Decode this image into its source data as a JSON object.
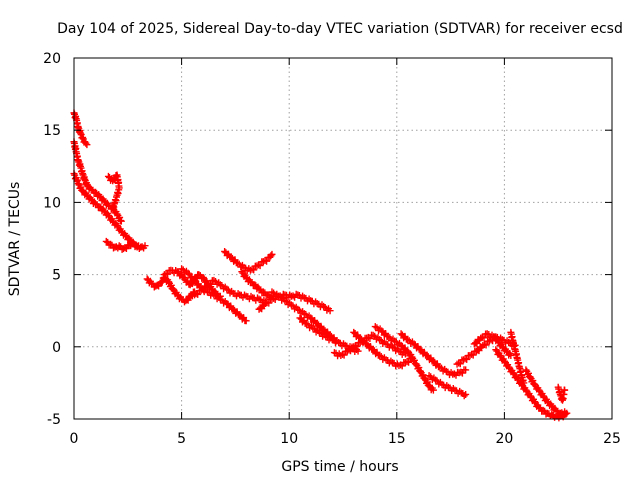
{
  "chart_data": {
    "type": "scatter",
    "title": "Day 104 of 2025, Sidereal Day-to-day VTEC variation (SDTVAR) for receiver ecsd",
    "xlabel": "GPS time / hours",
    "ylabel": "SDTVAR / TECUs",
    "xlim": [
      0,
      25
    ],
    "ylim": [
      -5,
      20
    ],
    "xticks": [
      "0",
      "5",
      "10",
      "15",
      "20",
      "25"
    ],
    "yticks": [
      "-5",
      "0",
      "5",
      "10",
      "15",
      "20"
    ],
    "grid": true,
    "marker": "+",
    "series": [
      {
        "name": "SDTVAR",
        "color": "#ff0000",
        "segments": [
          [
            [
              0.0,
              16.2
            ],
            [
              0.1,
              15.8
            ],
            [
              0.2,
              15.2
            ],
            [
              0.3,
              14.8
            ],
            [
              0.4,
              14.5
            ],
            [
              0.5,
              14.2
            ],
            [
              0.6,
              14.0
            ]
          ],
          [
            [
              0.0,
              14.2
            ],
            [
              0.1,
              13.5
            ],
            [
              0.2,
              12.9
            ],
            [
              0.3,
              12.5
            ],
            [
              0.4,
              12.0
            ],
            [
              0.5,
              11.6
            ],
            [
              0.6,
              11.2
            ],
            [
              0.8,
              10.9
            ],
            [
              1.0,
              10.7
            ],
            [
              1.2,
              10.4
            ],
            [
              1.4,
              10.1
            ],
            [
              1.6,
              9.8
            ],
            [
              1.8,
              9.6
            ],
            [
              2.0,
              9.2
            ],
            [
              2.2,
              8.7
            ]
          ],
          [
            [
              0.0,
              12.0
            ],
            [
              0.2,
              11.3
            ],
            [
              0.4,
              10.8
            ],
            [
              0.6,
              10.5
            ],
            [
              0.8,
              10.2
            ],
            [
              1.0,
              9.9
            ],
            [
              1.2,
              9.7
            ],
            [
              1.4,
              9.4
            ],
            [
              1.6,
              9.1
            ],
            [
              1.8,
              8.7
            ],
            [
              2.0,
              8.4
            ],
            [
              2.2,
              8.0
            ],
            [
              2.4,
              7.7
            ],
            [
              2.6,
              7.4
            ],
            [
              2.8,
              7.1
            ],
            [
              3.0,
              7.0
            ]
          ],
          [
            [
              1.5,
              7.3
            ],
            [
              1.7,
              7.1
            ],
            [
              1.9,
              6.9
            ],
            [
              2.1,
              7.0
            ],
            [
              2.3,
              6.8
            ],
            [
              2.5,
              7.0
            ],
            [
              2.7,
              7.2
            ],
            [
              2.9,
              7.0
            ],
            [
              3.1,
              6.9
            ],
            [
              3.3,
              7.0
            ]
          ],
          [
            [
              1.6,
              11.8
            ],
            [
              1.8,
              11.5
            ],
            [
              2.0,
              11.9
            ],
            [
              2.1,
              11.0
            ],
            [
              2.0,
              10.5
            ],
            [
              1.9,
              10.0
            ],
            [
              1.8,
              9.6
            ]
          ],
          [
            [
              3.4,
              4.7
            ],
            [
              3.6,
              4.4
            ],
            [
              3.8,
              4.2
            ],
            [
              4.0,
              4.4
            ],
            [
              4.2,
              4.8
            ],
            [
              4.4,
              4.5
            ],
            [
              4.6,
              4.0
            ],
            [
              4.8,
              3.6
            ],
            [
              5.0,
              3.3
            ],
            [
              5.2,
              3.2
            ],
            [
              5.4,
              3.5
            ],
            [
              5.6,
              3.8
            ]
          ],
          [
            [
              4.2,
              5.0
            ],
            [
              4.5,
              5.3
            ],
            [
              4.8,
              5.2
            ],
            [
              5.1,
              4.8
            ],
            [
              5.4,
              4.3
            ],
            [
              5.6,
              4.7
            ],
            [
              5.8,
              5.0
            ],
            [
              6.0,
              4.8
            ],
            [
              6.2,
              4.4
            ],
            [
              6.4,
              4.0
            ],
            [
              6.6,
              3.7
            ],
            [
              6.8,
              3.5
            ]
          ],
          [
            [
              5.0,
              5.4
            ],
            [
              5.3,
              5.1
            ],
            [
              5.6,
              4.6
            ],
            [
              5.9,
              4.1
            ],
            [
              6.2,
              3.8
            ],
            [
              6.5,
              3.6
            ],
            [
              6.8,
              3.3
            ],
            [
              7.1,
              3.0
            ],
            [
              7.4,
              2.6
            ],
            [
              7.7,
              2.2
            ],
            [
              8.0,
              1.8
            ]
          ],
          [
            [
              5.6,
              3.6
            ],
            [
              5.9,
              3.9
            ],
            [
              6.2,
              4.3
            ],
            [
              6.5,
              4.6
            ],
            [
              6.8,
              4.3
            ],
            [
              7.1,
              4.0
            ],
            [
              7.4,
              3.7
            ],
            [
              7.7,
              3.6
            ],
            [
              8.0,
              3.5
            ],
            [
              8.3,
              3.4
            ],
            [
              8.6,
              3.3
            ],
            [
              8.9,
              3.1
            ]
          ],
          [
            [
              7.0,
              6.6
            ],
            [
              7.3,
              6.2
            ],
            [
              7.6,
              5.8
            ],
            [
              7.9,
              5.5
            ],
            [
              8.2,
              5.3
            ],
            [
              8.5,
              5.6
            ],
            [
              8.8,
              5.9
            ],
            [
              9.1,
              6.2
            ],
            [
              9.2,
              6.4
            ]
          ],
          [
            [
              7.8,
              5.2
            ],
            [
              8.0,
              4.8
            ],
            [
              8.2,
              4.5
            ],
            [
              8.4,
              4.3
            ],
            [
              8.6,
              4.0
            ],
            [
              8.8,
              3.8
            ],
            [
              9.0,
              3.6
            ],
            [
              9.2,
              3.5
            ]
          ],
          [
            [
              8.6,
              2.6
            ],
            [
              8.9,
              3.0
            ],
            [
              9.2,
              3.3
            ],
            [
              9.5,
              3.5
            ],
            [
              9.8,
              3.6
            ],
            [
              10.1,
              3.5
            ],
            [
              10.4,
              3.6
            ],
            [
              10.7,
              3.4
            ],
            [
              11.0,
              3.2
            ],
            [
              11.3,
              3.0
            ],
            [
              11.6,
              2.8
            ],
            [
              11.9,
              2.5
            ]
          ],
          [
            [
              9.2,
              3.8
            ],
            [
              9.5,
              3.5
            ],
            [
              9.8,
              3.2
            ],
            [
              10.1,
              2.9
            ],
            [
              10.4,
              2.6
            ],
            [
              10.7,
              2.3
            ],
            [
              11.0,
              2.0
            ],
            [
              11.3,
              1.6
            ],
            [
              11.6,
              1.2
            ],
            [
              11.9,
              0.8
            ],
            [
              12.2,
              0.4
            ]
          ],
          [
            [
              10.5,
              2.0
            ],
            [
              10.8,
              1.6
            ],
            [
              11.1,
              1.3
            ],
            [
              11.4,
              1.0
            ],
            [
              11.7,
              0.7
            ],
            [
              12.0,
              0.5
            ],
            [
              12.3,
              0.3
            ],
            [
              12.6,
              0.1
            ],
            [
              12.9,
              -0.1
            ],
            [
              13.2,
              -0.3
            ]
          ],
          [
            [
              12.1,
              -0.4
            ],
            [
              12.4,
              -0.6
            ],
            [
              12.7,
              -0.3
            ],
            [
              13.0,
              0.0
            ],
            [
              13.3,
              0.3
            ],
            [
              13.6,
              0.6
            ],
            [
              13.9,
              0.8
            ],
            [
              14.2,
              0.5
            ],
            [
              14.5,
              0.2
            ],
            [
              14.8,
              0.0
            ],
            [
              15.1,
              -0.3
            ],
            [
              15.4,
              -0.5
            ]
          ],
          [
            [
              13.0,
              1.0
            ],
            [
              13.3,
              0.6
            ],
            [
              13.6,
              0.2
            ],
            [
              13.9,
              -0.2
            ],
            [
              14.2,
              -0.6
            ],
            [
              14.5,
              -0.9
            ],
            [
              14.8,
              -1.1
            ],
            [
              15.1,
              -1.3
            ],
            [
              15.4,
              -1.1
            ],
            [
              15.7,
              -0.8
            ]
          ],
          [
            [
              14.0,
              1.4
            ],
            [
              14.3,
              1.1
            ],
            [
              14.6,
              0.7
            ],
            [
              14.9,
              0.4
            ],
            [
              15.2,
              0.1
            ],
            [
              15.5,
              -0.3
            ],
            [
              15.7,
              -0.7
            ],
            [
              15.9,
              -1.2
            ],
            [
              16.1,
              -1.7
            ],
            [
              16.3,
              -2.2
            ],
            [
              16.5,
              -2.7
            ],
            [
              16.7,
              -3.0
            ]
          ],
          [
            [
              15.2,
              0.9
            ],
            [
              15.5,
              0.5
            ],
            [
              15.8,
              0.2
            ],
            [
              16.1,
              -0.2
            ],
            [
              16.4,
              -0.6
            ],
            [
              16.7,
              -1.0
            ],
            [
              17.0,
              -1.4
            ],
            [
              17.3,
              -1.7
            ],
            [
              17.6,
              -1.9
            ],
            [
              17.9,
              -1.8
            ],
            [
              18.2,
              -1.6
            ]
          ],
          [
            [
              16.5,
              -2.0
            ],
            [
              16.8,
              -2.3
            ],
            [
              17.1,
              -2.6
            ],
            [
              17.4,
              -2.8
            ],
            [
              17.7,
              -3.0
            ],
            [
              18.0,
              -3.2
            ],
            [
              18.2,
              -3.3
            ]
          ],
          [
            [
              17.8,
              -1.2
            ],
            [
              18.1,
              -0.9
            ],
            [
              18.4,
              -0.6
            ],
            [
              18.7,
              -0.3
            ],
            [
              19.0,
              0.1
            ],
            [
              19.3,
              0.4
            ],
            [
              19.6,
              0.7
            ],
            [
              19.9,
              0.5
            ],
            [
              20.2,
              0.3
            ],
            [
              20.5,
              0.1
            ]
          ],
          [
            [
              18.6,
              0.2
            ],
            [
              18.9,
              0.6
            ],
            [
              19.2,
              0.9
            ],
            [
              19.5,
              0.7
            ],
            [
              19.7,
              0.4
            ],
            [
              19.9,
              0.0
            ],
            [
              20.1,
              -0.3
            ],
            [
              20.3,
              -0.6
            ]
          ],
          [
            [
              19.6,
              -0.2
            ],
            [
              19.8,
              -0.6
            ],
            [
              20.0,
              -1.0
            ],
            [
              20.2,
              -1.4
            ],
            [
              20.4,
              -1.8
            ],
            [
              20.6,
              -2.2
            ],
            [
              20.8,
              -2.6
            ],
            [
              21.0,
              -3.0
            ],
            [
              21.2,
              -3.4
            ],
            [
              21.4,
              -3.8
            ],
            [
              21.6,
              -4.2
            ],
            [
              21.8,
              -4.4
            ],
            [
              22.0,
              -4.6
            ],
            [
              22.2,
              -4.7
            ],
            [
              22.4,
              -4.8
            ],
            [
              22.6,
              -4.8
            ],
            [
              22.8,
              -4.7
            ],
            [
              22.9,
              -4.6
            ]
          ],
          [
            [
              20.3,
              1.0
            ],
            [
              20.4,
              0.4
            ],
            [
              20.5,
              -0.2
            ],
            [
              20.6,
              -0.8
            ],
            [
              20.7,
              -1.4
            ],
            [
              20.8,
              -2.0
            ],
            [
              20.9,
              -2.5
            ]
          ],
          [
            [
              21.0,
              -1.6
            ],
            [
              21.2,
              -2.1
            ],
            [
              21.4,
              -2.6
            ],
            [
              21.6,
              -3.0
            ],
            [
              21.8,
              -3.4
            ],
            [
              22.0,
              -3.8
            ],
            [
              22.2,
              -4.1
            ],
            [
              22.4,
              -4.4
            ],
            [
              22.6,
              -4.6
            ],
            [
              22.8,
              -4.5
            ]
          ],
          [
            [
              22.5,
              -2.8
            ],
            [
              22.6,
              -3.3
            ],
            [
              22.7,
              -3.7
            ],
            [
              22.8,
              -3.0
            ]
          ]
        ]
      }
    ]
  }
}
